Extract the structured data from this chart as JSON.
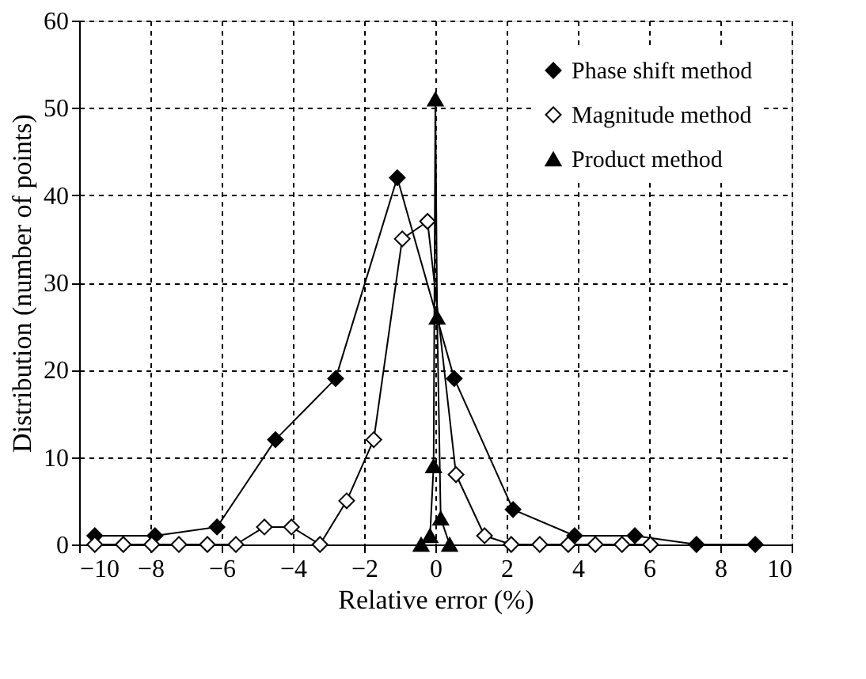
{
  "chart_data": {
    "type": "line",
    "xlabel": "Relative error (%)",
    "ylabel": "Distribution (number of points)",
    "xlim": [
      -10,
      10
    ],
    "xticks": [
      -10,
      -8,
      -6,
      -4,
      -2,
      0,
      2,
      4,
      6,
      8,
      10
    ],
    "ylim": [
      0,
      60
    ],
    "yticks": [
      0,
      10,
      20,
      30,
      40,
      50,
      60
    ],
    "grid": true,
    "legend": "top right",
    "line_style": "solid",
    "series": [
      {
        "name": "Phase shift method",
        "color": "#000000",
        "marker": "diamond",
        "x": [
          -9.56,
          -7.87,
          -6.13,
          -4.49,
          -2.8,
          -1.07,
          0.53,
          2.18,
          3.91,
          5.6,
          7.33,
          8.98
        ],
        "values": [
          1,
          1,
          2,
          12,
          19,
          42,
          19,
          4,
          1,
          1,
          0,
          0
        ]
      },
      {
        "name": "Magnitude method",
        "color": "#000000",
        "marker": "diamond",
        "x": [
          -9.56,
          -8.76,
          -7.96,
          -7.2,
          -6.4,
          -5.6,
          -4.8,
          -4.04,
          -3.24,
          -2.49,
          -1.73,
          -0.93,
          -0.22,
          0.58,
          1.38,
          2.13,
          2.93,
          3.73,
          4.49,
          5.24,
          6.04
        ],
        "values": [
          0,
          0,
          0,
          0,
          0,
          0,
          2,
          2,
          0,
          5,
          12,
          35,
          37,
          8,
          1,
          0,
          0,
          0,
          0,
          0,
          0
        ]
      },
      {
        "name": "Product method",
        "color": "#000000",
        "marker": "triangle",
        "x": [
          -0.4,
          -0.15,
          -0.05,
          0,
          0.05,
          0.15,
          0.4
        ],
        "values": [
          0,
          1,
          9,
          51,
          26,
          3,
          0
        ]
      }
    ]
  }
}
